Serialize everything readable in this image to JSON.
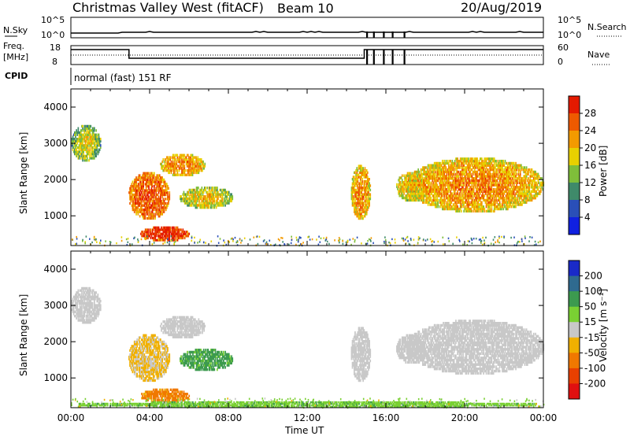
{
  "header": {
    "title": "Christmas Valley West (fitACF)",
    "beam": "Beam 10",
    "date": "20/Aug/2019"
  },
  "top_panels": {
    "nsky_label": "N.Sky",
    "nsky_ticks": [
      "10^5",
      "10^0"
    ],
    "nsearch_label": "N.Search",
    "freq_label_1": "Freq.",
    "freq_label_2": "[MHz]",
    "freq_ticks": [
      "18",
      "8"
    ],
    "nave_ticks": [
      "60",
      "0"
    ],
    "nave_label": "Nave",
    "cpid_label": "CPID",
    "cpid_text": "normal (fast) 151 RF"
  },
  "chart_data": [
    {
      "type": "heatmap",
      "name": "power",
      "ylabel": "Slant Range [km]",
      "yticks": [
        1000,
        2000,
        3000,
        4000
      ],
      "ylim": [
        180,
        4500
      ],
      "xlim_hours": [
        0,
        24
      ],
      "colorbar_label": "Power [dB]",
      "colorbar_ticks": [
        "4",
        "8",
        "12",
        "16",
        "20",
        "24",
        "28"
      ],
      "colorbar_colors": [
        "#1020e0",
        "#2a4fb8",
        "#3f8a6a",
        "#7fbe3a",
        "#e8d000",
        "#f39a00",
        "#ee5a00",
        "#e41a00"
      ],
      "regions": [
        {
          "t": [
            0.0,
            1.5
          ],
          "r": [
            2500,
            3500
          ],
          "level": 12
        },
        {
          "t": [
            2.9,
            5.0
          ],
          "r": [
            900,
            2200
          ],
          "level": 22
        },
        {
          "t": [
            4.5,
            6.8
          ],
          "r": [
            2100,
            2700
          ],
          "level": 18
        },
        {
          "t": [
            5.5,
            8.2
          ],
          "r": [
            1200,
            1800
          ],
          "level": 14
        },
        {
          "t": [
            3.5,
            6.0
          ],
          "r": [
            300,
            700
          ],
          "level": 26
        },
        {
          "t": [
            14.2,
            15.2
          ],
          "r": [
            900,
            2400
          ],
          "level": 18
        },
        {
          "t": [
            16.5,
            18.0
          ],
          "r": [
            1400,
            2200
          ],
          "level": 16
        },
        {
          "t": [
            17.0,
            24.0
          ],
          "r": [
            1100,
            2600
          ],
          "level": 18
        }
      ]
    },
    {
      "type": "heatmap",
      "name": "velocity",
      "ylabel": "Slant Range [km]",
      "yticks": [
        1000,
        2000,
        3000,
        4000
      ],
      "ylim": [
        180,
        4500
      ],
      "xlim_hours": [
        0,
        24
      ],
      "colorbar_label": "Velocity [m s⁻¹]",
      "colorbar_ticks": [
        "200",
        "100",
        "50",
        "15",
        "-15",
        "-50",
        "-100",
        "-200"
      ],
      "colorbar_colors": [
        "#1a2ac8",
        "#2f6a8f",
        "#3c9a4f",
        "#7ad033",
        "#c8c8c8",
        "#f0b000",
        "#f07800",
        "#e84000",
        "#e01010"
      ],
      "regions": [
        {
          "t": [
            0.0,
            1.5
          ],
          "r": [
            2500,
            3500
          ],
          "level": 0
        },
        {
          "t": [
            2.9,
            5.0
          ],
          "r": [
            900,
            2200
          ],
          "level": -20
        },
        {
          "t": [
            4.5,
            6.8
          ],
          "r": [
            2100,
            2700
          ],
          "level": 0
        },
        {
          "t": [
            5.5,
            8.2
          ],
          "r": [
            1200,
            1800
          ],
          "level": 60
        },
        {
          "t": [
            3.5,
            6.0
          ],
          "r": [
            300,
            700
          ],
          "level": -60
        },
        {
          "t": [
            14.2,
            15.2
          ],
          "r": [
            900,
            2400
          ],
          "level": 0
        },
        {
          "t": [
            16.5,
            18.0
          ],
          "r": [
            1400,
            2200
          ],
          "level": 0
        },
        {
          "t": [
            17.0,
            24.0
          ],
          "r": [
            1100,
            2600
          ],
          "level": 0
        },
        {
          "t": [
            0.0,
            24.0
          ],
          "r": [
            180,
            350
          ],
          "level": 40
        }
      ]
    }
  ],
  "xaxis": {
    "ticks": [
      "00:00",
      "04:00",
      "08:00",
      "12:00",
      "16:00",
      "20:00",
      "00:00"
    ],
    "label": "Time UT"
  }
}
